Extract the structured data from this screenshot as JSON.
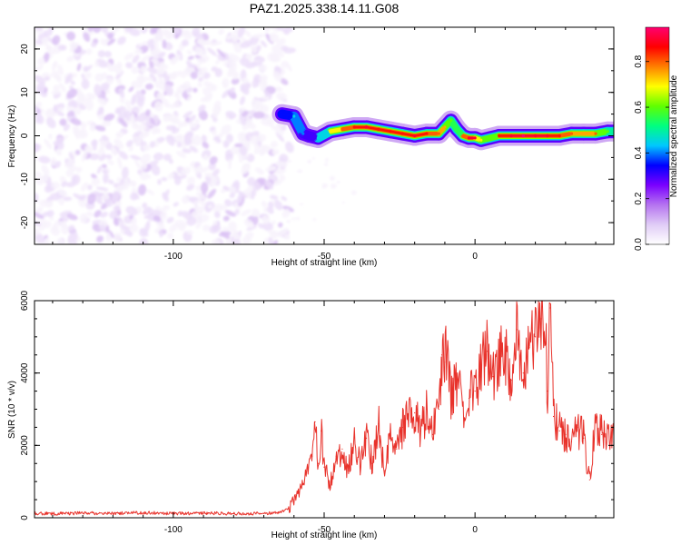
{
  "figure_title": "PAZ1.2025.338.14.11.G08",
  "chart_data": [
    {
      "type": "heatmap",
      "title": "PAZ1.2025.338.14.11.G08",
      "xlabel": "Height of straight line (km)",
      "ylabel": "Frequency (Hz)",
      "xlim": [
        -146,
        46
      ],
      "ylim": [
        -25,
        25
      ],
      "xticks": [
        -100,
        -50,
        0
      ],
      "xtick_labels": [
        "-100",
        "-50",
        "0"
      ],
      "yticks": [
        -20,
        -10,
        0,
        10,
        20
      ],
      "ytick_labels": [
        "-20",
        "-10",
        "0",
        "10",
        "20"
      ],
      "colorbar": {
        "label": "Normalized spectral amplitude",
        "range": [
          0,
          0.95
        ],
        "ticks": [
          0,
          0.2,
          0.4,
          0.6,
          0.8
        ],
        "tick_labels": [
          "0.0",
          "0.2",
          "0.4",
          "0.6",
          "0.8"
        ],
        "colors": [
          "#ffffff",
          "#e0ccf6",
          "#b573f0",
          "#7a00ff",
          "#0000ff",
          "#00c8ff",
          "#00ff80",
          "#60ff00",
          "#ffff00",
          "#ff8000",
          "#ff0000",
          "#ff0070"
        ]
      },
      "noise_region": {
        "x_range": [
          -146,
          -61
        ],
        "y_range": [
          -25,
          25
        ],
        "typical_amplitude": 0.05
      },
      "signal_ridge": {
        "x": [
          -64,
          -60,
          -57,
          -55,
          -52,
          -48,
          -44,
          -40,
          -36,
          -32,
          -28,
          -24,
          -20,
          -16,
          -12,
          -10,
          -8,
          -6,
          -4,
          -2,
          0,
          2,
          5,
          8,
          12,
          16,
          20,
          24,
          28,
          32,
          36,
          40,
          44,
          46
        ],
        "frequency": [
          5,
          4.5,
          0.5,
          0,
          -0.5,
          1,
          1.5,
          2,
          2,
          1.5,
          1,
          0.5,
          0,
          0.5,
          0.5,
          2,
          3.5,
          1.5,
          0,
          -0.5,
          -0.5,
          -1,
          -0.5,
          0,
          0,
          0,
          0,
          0,
          0,
          0.5,
          0.5,
          0.5,
          1,
          1
        ],
        "amplitude": [
          0.35,
          0.45,
          0.4,
          0.3,
          0.45,
          0.7,
          0.8,
          0.85,
          0.9,
          0.85,
          0.85,
          0.85,
          0.9,
          0.85,
          0.8,
          0.75,
          0.6,
          0.55,
          0.8,
          0.9,
          0.9,
          0.7,
          0.6,
          0.85,
          0.9,
          0.95,
          0.9,
          0.9,
          0.85,
          0.8,
          0.75,
          0.8,
          0.6,
          0.5
        ]
      }
    },
    {
      "type": "line",
      "xlabel": "Height of straight line (km)",
      "ylabel": "SNR (10 * v/v)",
      "xlim": [
        -146,
        46
      ],
      "ylim": [
        0,
        6000
      ],
      "xticks": [
        -100,
        -50,
        0
      ],
      "xtick_labels": [
        "-100",
        "-50",
        "0"
      ],
      "yticks": [
        0,
        2000,
        4000,
        6000
      ],
      "ytick_labels": [
        "0",
        "2000",
        "4000",
        "6000"
      ],
      "series": [
        {
          "name": "SNR",
          "color": "#e8322b",
          "x": [
            -146,
            -140,
            -130,
            -120,
            -110,
            -100,
            -90,
            -80,
            -70,
            -65,
            -62,
            -60,
            -58,
            -56,
            -54,
            -53,
            -52,
            -51,
            -50,
            -48,
            -46,
            -44,
            -42,
            -40,
            -38,
            -36,
            -34,
            -32,
            -30,
            -28,
            -26,
            -24,
            -22,
            -20,
            -18,
            -16,
            -14,
            -12,
            -11,
            -10,
            -9,
            -8,
            -6,
            -4,
            -2,
            0,
            2,
            4,
            6,
            8,
            10,
            12,
            14,
            16,
            18,
            20,
            22,
            23,
            24,
            25,
            26,
            28,
            30,
            32,
            34,
            36,
            38,
            40,
            42,
            44,
            46
          ],
          "y": [
            120,
            110,
            130,
            120,
            140,
            120,
            130,
            110,
            120,
            150,
            250,
            500,
            800,
            1200,
            1700,
            2650,
            1500,
            2400,
            1400,
            900,
            1700,
            1900,
            1300,
            2300,
            1400,
            2200,
            1500,
            2600,
            1300,
            2200,
            1900,
            2500,
            2700,
            2900,
            2400,
            3000,
            2300,
            3000,
            4500,
            4300,
            4850,
            3200,
            3800,
            3100,
            3300,
            3500,
            4200,
            4600,
            3900,
            4400,
            4500,
            3800,
            5200,
            4000,
            4700,
            5000,
            5500,
            6000,
            3500,
            5800,
            2800,
            2400,
            2300,
            2100,
            2500,
            2200,
            1050,
            2700,
            2300,
            2500,
            2100
          ]
        }
      ]
    }
  ]
}
